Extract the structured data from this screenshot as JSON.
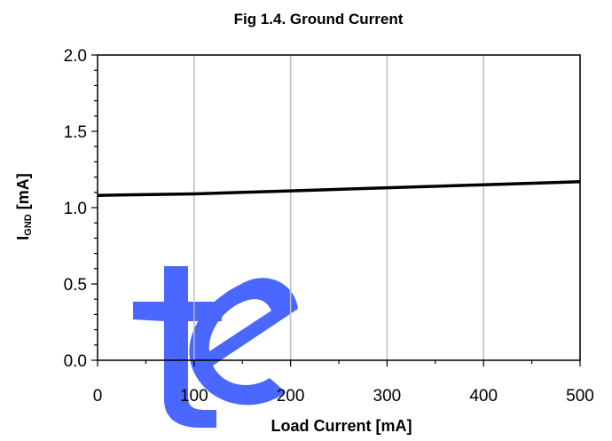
{
  "chart_data": {
    "type": "line",
    "title": "Fig 1.4. Ground Current",
    "xlabel": "Load Current [mA]",
    "ylabel_main": "I",
    "ylabel_sub": "GND",
    "ylabel_unit": " [mA]",
    "xlim": [
      0,
      500
    ],
    "ylim": [
      0,
      2.0
    ],
    "x_ticks": [
      0,
      100,
      200,
      300,
      400,
      500
    ],
    "x_tick_labels": [
      "0",
      "100",
      "200",
      "300",
      "400",
      "500"
    ],
    "y_ticks": [
      0,
      0.5,
      1.0,
      1.5,
      2.0
    ],
    "y_tick_labels": [
      "0.0",
      "0.5",
      "1.0",
      "1.5",
      "2.0"
    ],
    "grid": "vertical",
    "series": [
      {
        "x": [
          0,
          100,
          200,
          300,
          400,
          500
        ],
        "y": [
          1.08,
          1.09,
          1.11,
          1.13,
          1.15,
          1.17
        ],
        "color": "#000000"
      }
    ]
  },
  "watermark": {
    "text": "te",
    "color": "#3b5bff"
  }
}
